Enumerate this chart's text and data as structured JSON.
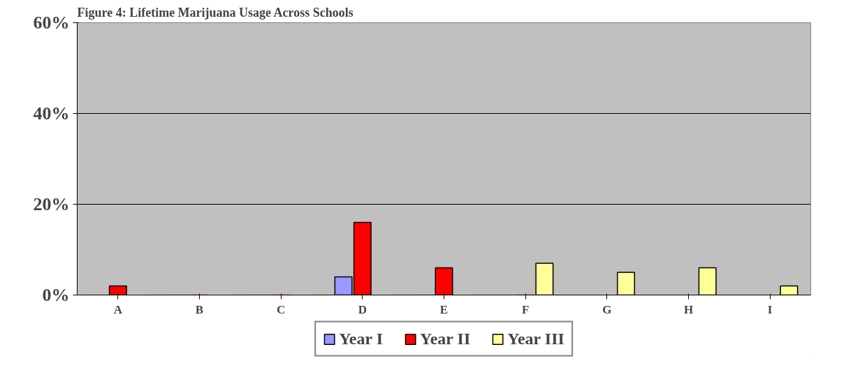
{
  "chart_data": {
    "type": "bar",
    "title": "Figure 4: Lifetime Marijuana Usage Across Schools",
    "categories": [
      "A",
      "B",
      "C",
      "D",
      "E",
      "F",
      "G",
      "H",
      "I"
    ],
    "series": [
      {
        "name": "Year I",
        "color": "#9999ff",
        "values": [
          0,
          0,
          0,
          4,
          0,
          null,
          null,
          null,
          null
        ]
      },
      {
        "name": "Year II",
        "color": "#ff0000",
        "values": [
          2,
          0,
          0,
          16,
          6,
          0,
          null,
          null,
          null
        ]
      },
      {
        "name": "Year III",
        "color": "#ffff99",
        "values": [
          0,
          0,
          0,
          0,
          0,
          7,
          5,
          6,
          2
        ]
      }
    ],
    "ylim": [
      0,
      60
    ],
    "yticks": [
      {
        "value": 0,
        "label": "0%"
      },
      {
        "value": 20,
        "label": "20%"
      },
      {
        "value": 40,
        "label": "40%"
      },
      {
        "value": 60,
        "label": "60%"
      }
    ],
    "grid": "y",
    "legend": "bottom"
  }
}
